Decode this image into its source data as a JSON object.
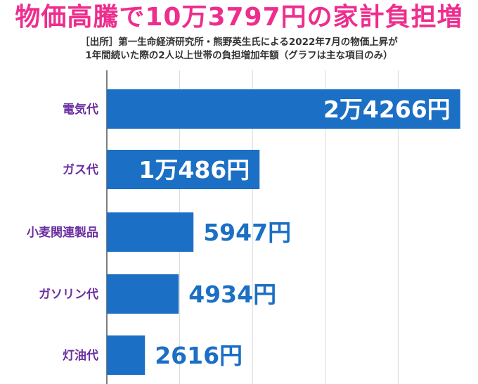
{
  "title": "物価高騰で10万3797円の家計負担増",
  "subtitle_line1": "［出所］第一生命経済研究所・熊野英生氏による2022年7月の物価上昇が",
  "subtitle_line2": "1年間続いた際の2人以上世帯の負担増加年額（グラフは主な項目のみ）",
  "colors": {
    "title": "#ee2d8e",
    "category_label": "#6b2fa0",
    "bar": "#1b6fc4",
    "label_inside": "#ffffff",
    "label_outside": "#1b6fc4",
    "grid": "#d8d8d8",
    "axis": "#555555"
  },
  "chart_data": {
    "type": "bar",
    "orientation": "horizontal",
    "categories": [
      "電気代",
      "ガス代",
      "小麦関連製品",
      "ガソリン代",
      "灯油代"
    ],
    "values": [
      24266,
      10486,
      5947,
      4934,
      2616
    ],
    "value_labels": [
      "2万4266円",
      "1万486円",
      "5947円",
      "4934円",
      "2616円"
    ],
    "xlim": [
      0,
      25000
    ],
    "grid": true
  }
}
